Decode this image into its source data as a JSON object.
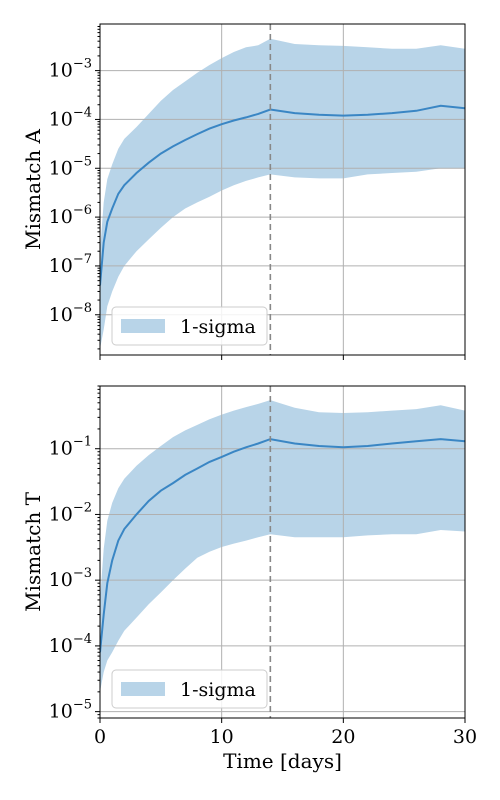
{
  "chart_data": [
    {
      "type": "line",
      "ylabel": "Mismatch A",
      "yscale": "log",
      "ylim": [
        1.5e-09,
        0.009
      ],
      "xlim": [
        0,
        30
      ],
      "yticks": [
        1e-08,
        1e-07,
        1e-06,
        1e-05,
        0.0001,
        0.001
      ],
      "ytick_labels": [
        {
          "base": "10",
          "exp": "−8"
        },
        {
          "base": "10",
          "exp": "−7"
        },
        {
          "base": "10",
          "exp": "−6"
        },
        {
          "base": "10",
          "exp": "−5"
        },
        {
          "base": "10",
          "exp": "−4"
        },
        {
          "base": "10",
          "exp": "−3"
        }
      ],
      "grid": true,
      "vline_x": 14,
      "legend": {
        "label": "1-sigma",
        "placement": "lower-left"
      },
      "color": "#3a86c4",
      "band_color": "#b8d4e8",
      "x": [
        0,
        0.3,
        0.6,
        1,
        1.5,
        2,
        3,
        4,
        5,
        6,
        7,
        8,
        9,
        10,
        11,
        12,
        13,
        14,
        16,
        18,
        20,
        22,
        24,
        26,
        28,
        30
      ],
      "mean": [
        4e-08,
        3e-07,
        8e-07,
        1.5e-06,
        3e-06,
        4.5e-06,
        8e-06,
        1.3e-05,
        2e-05,
        2.8e-05,
        3.8e-05,
        5e-05,
        6.5e-05,
        8e-05,
        9.5e-05,
        0.00011,
        0.00013,
        0.00016,
        0.000135,
        0.000125,
        0.00012,
        0.000125,
        0.000135,
        0.00015,
        0.00019,
        0.00017
      ],
      "upper": [
        2e-07,
        2e-06,
        6e-06,
        1.2e-05,
        2.5e-05,
        4e-05,
        7e-05,
        0.00013,
        0.00024,
        0.0004,
        0.0006,
        0.0009,
        0.0013,
        0.0018,
        0.0024,
        0.003,
        0.0033,
        0.0045,
        0.0035,
        0.0033,
        0.0032,
        0.003,
        0.0028,
        0.0028,
        0.0033,
        0.0028
      ],
      "lower": [
        2e-09,
        5e-09,
        1.5e-08,
        3e-08,
        6e-08,
        1e-07,
        2e-07,
        3.5e-07,
        6e-07,
        1e-06,
        1.5e-06,
        2e-06,
        2.6e-06,
        3.5e-06,
        4.5e-06,
        5.5e-06,
        6.5e-06,
        7.5e-06,
        6.5e-06,
        6.2e-06,
        6.2e-06,
        7.5e-06,
        8e-06,
        8.5e-06,
        1e-05,
        1e-05
      ]
    },
    {
      "type": "line",
      "ylabel": "Mismatch T",
      "xlabel": "Time [days]",
      "yscale": "log",
      "ylim": [
        8e-06,
        0.9
      ],
      "xlim": [
        0,
        30
      ],
      "xticks": [
        0,
        10,
        20,
        30
      ],
      "xtick_labels": [
        "0",
        "10",
        "20",
        "30"
      ],
      "yticks": [
        1e-05,
        0.0001,
        0.001,
        0.01,
        0.1
      ],
      "ytick_labels": [
        {
          "base": "10",
          "exp": "−5"
        },
        {
          "base": "10",
          "exp": "−4"
        },
        {
          "base": "10",
          "exp": "−3"
        },
        {
          "base": "10",
          "exp": "−2"
        },
        {
          "base": "10",
          "exp": "−1"
        }
      ],
      "grid": true,
      "vline_x": 14,
      "legend": {
        "label": "1-sigma",
        "placement": "lower-left"
      },
      "color": "#3a86c4",
      "band_color": "#b8d4e8",
      "x": [
        0,
        0.3,
        0.6,
        1,
        1.5,
        2,
        3,
        4,
        5,
        6,
        7,
        8,
        9,
        10,
        11,
        12,
        13,
        14,
        16,
        18,
        20,
        22,
        24,
        26,
        28,
        30
      ],
      "mean": [
        8e-05,
        0.0003,
        0.0009,
        0.002,
        0.004,
        0.006,
        0.01,
        0.016,
        0.023,
        0.03,
        0.04,
        0.05,
        0.063,
        0.075,
        0.09,
        0.105,
        0.12,
        0.14,
        0.12,
        0.11,
        0.105,
        0.11,
        0.12,
        0.13,
        0.14,
        0.13
      ],
      "upper": [
        0.0005,
        0.003,
        0.008,
        0.015,
        0.025,
        0.035,
        0.055,
        0.08,
        0.11,
        0.15,
        0.19,
        0.23,
        0.28,
        0.33,
        0.38,
        0.43,
        0.48,
        0.55,
        0.42,
        0.36,
        0.35,
        0.36,
        0.38,
        0.4,
        0.46,
        0.38
      ],
      "lower": [
        2e-05,
        4e-05,
        6e-05,
        8e-05,
        0.00012,
        0.00017,
        0.00027,
        0.00043,
        0.00065,
        0.001,
        0.0015,
        0.0022,
        0.0027,
        0.0032,
        0.0036,
        0.004,
        0.0045,
        0.005,
        0.0045,
        0.0045,
        0.0045,
        0.0048,
        0.005,
        0.005,
        0.0058,
        0.0055
      ]
    }
  ]
}
